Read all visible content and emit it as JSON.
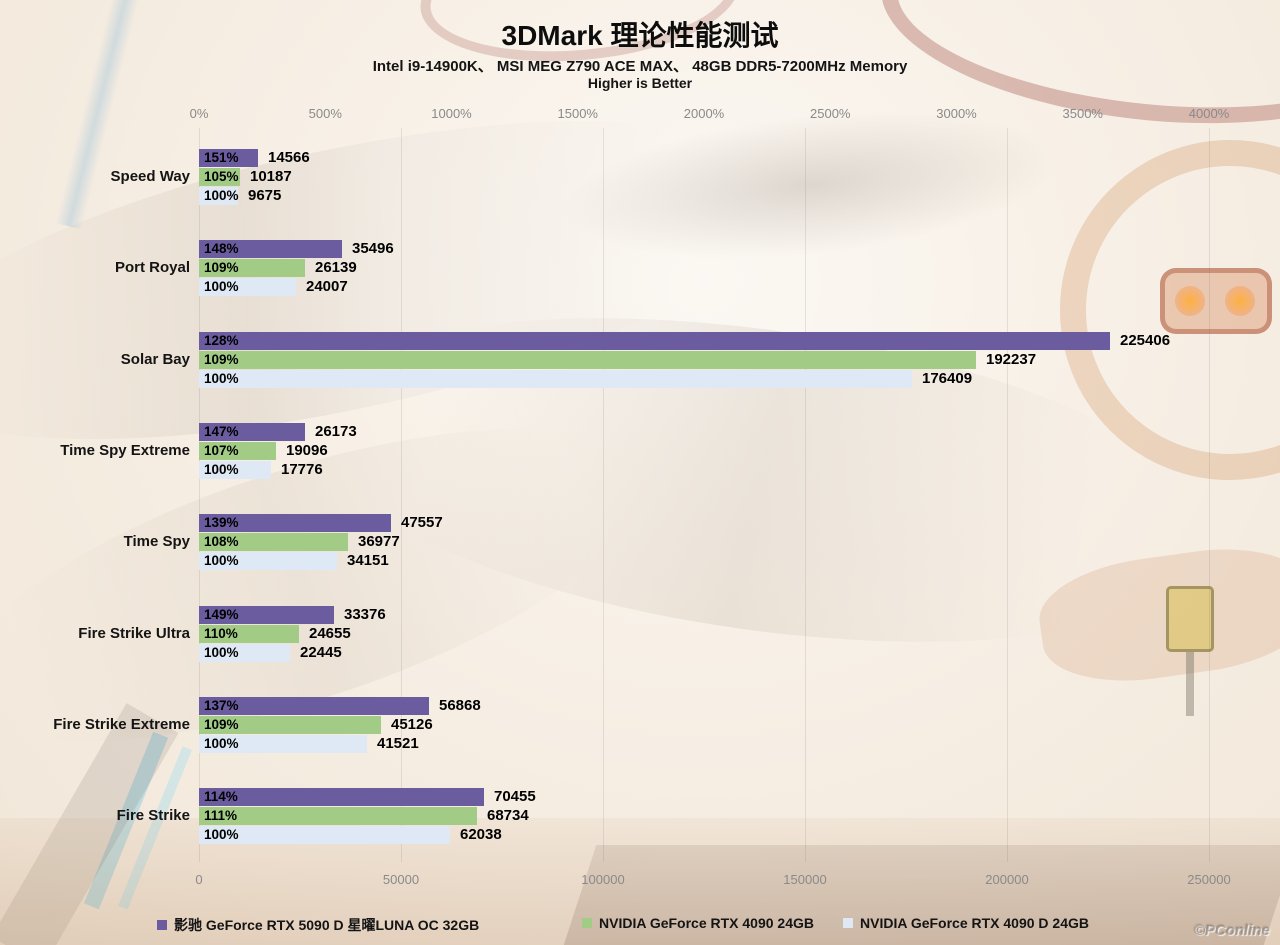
{
  "header": {
    "title": "3DMark 理论性能测试",
    "subtitle": "Intel i9-14900K、 MSI MEG Z790 ACE MAX、 48GB DDR5-7200MHz Memory",
    "note": "Higher is Better"
  },
  "watermark": "©PConline",
  "chart_data": {
    "type": "bar",
    "orientation": "horizontal",
    "title": "3DMark 理论性能测试",
    "subtitle": "Intel i9-14900K、 MSI MEG Z790 ACE MAX、 48GB DDR5-7200MHz Memory",
    "note": "Higher is Better",
    "categories": [
      "Speed Way",
      "Port Royal",
      "Solar Bay",
      "Time Spy Extreme",
      "Time Spy",
      "Fire Strike Ultra",
      "Fire Strike Extreme",
      "Fire Strike"
    ],
    "series": [
      {
        "name": "影驰 GeForce RTX 5090 D 星曜LUNA OC 32GB",
        "color": "#6A5C9F",
        "values": [
          14566,
          35496,
          225406,
          26173,
          47557,
          33376,
          56868,
          70455
        ],
        "percent": [
          151,
          148,
          128,
          147,
          139,
          149,
          137,
          114
        ]
      },
      {
        "name": "NVIDIA GeForce RTX 4090 24GB",
        "color": "#A2CC86",
        "values": [
          10187,
          26139,
          192237,
          19096,
          36977,
          24655,
          45126,
          68734
        ],
        "percent": [
          105,
          109,
          109,
          107,
          108,
          110,
          109,
          111
        ]
      },
      {
        "name": "NVIDIA GeForce RTX 4090 D 24GB",
        "color": "#DEE9F5",
        "values": [
          9675,
          24007,
          176409,
          17776,
          34151,
          22445,
          41521,
          62038
        ],
        "percent": [
          100,
          100,
          100,
          100,
          100,
          100,
          100,
          100
        ]
      }
    ],
    "axis_top": {
      "ticks": [
        "0%",
        "500%",
        "1000%",
        "1500%",
        "2000%",
        "2500%",
        "3000%",
        "3500%",
        "4000%"
      ],
      "min": 0,
      "max": 4000
    },
    "axis_bottom": {
      "ticks": [
        "0",
        "50000",
        "100000",
        "150000",
        "200000",
        "250000"
      ],
      "min": 0,
      "max": 250000
    },
    "xlim": [
      0,
      250000
    ],
    "grid": true,
    "legend_position": "bottom"
  }
}
